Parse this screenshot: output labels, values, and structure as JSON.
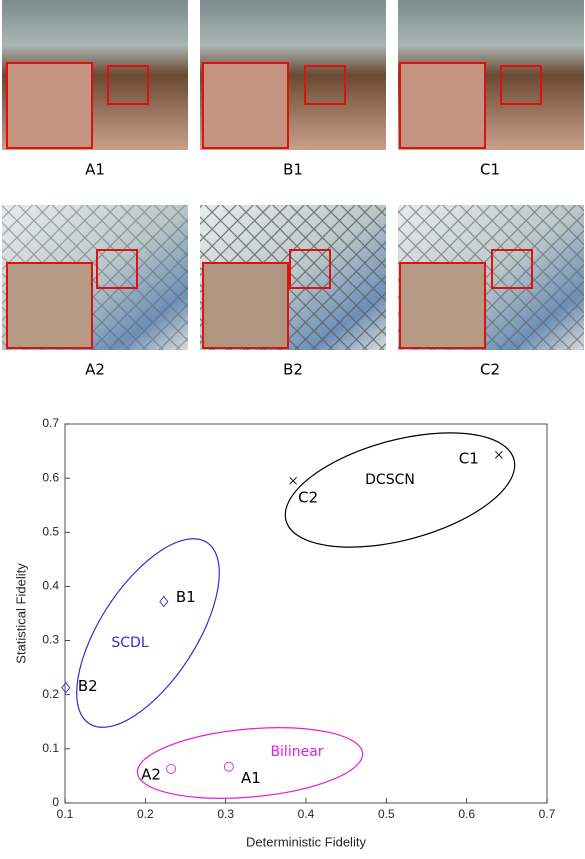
{
  "panels": {
    "row1": [
      "A1",
      "B1",
      "C1"
    ],
    "row2": [
      "A2",
      "B2",
      "C2"
    ]
  },
  "chart_data": {
    "type": "scatter",
    "xlabel": "Deterministic Fidelity",
    "ylabel": "Statistical Fidelity",
    "xlim": [
      0.1,
      0.7
    ],
    "ylim": [
      0,
      0.7
    ],
    "xticks": [
      0.1,
      0.2,
      0.3,
      0.4,
      0.5,
      0.6,
      0.7
    ],
    "yticks": [
      0,
      0.1,
      0.2,
      0.3,
      0.4,
      0.5,
      0.6,
      0.7
    ],
    "series": [
      {
        "name": "DCSCN",
        "color": "#000000",
        "marker": "x",
        "x": [
          0.64,
          0.384
        ],
        "values": [
          0.643,
          0.595
        ],
        "labels": [
          "C1",
          "C2"
        ]
      },
      {
        "name": "SCDL",
        "color": "#2f2fd0",
        "marker": "diamond",
        "x": [
          0.223,
          0.101
        ],
        "values": [
          0.372,
          0.213
        ],
        "labels": [
          "B1",
          "B2"
        ]
      },
      {
        "name": "Bilinear",
        "color": "#e020e0",
        "marker": "circle",
        "x": [
          0.232,
          0.304
        ],
        "values": [
          0.063,
          0.067
        ],
        "labels": [
          "A2",
          "A1"
        ]
      }
    ]
  }
}
